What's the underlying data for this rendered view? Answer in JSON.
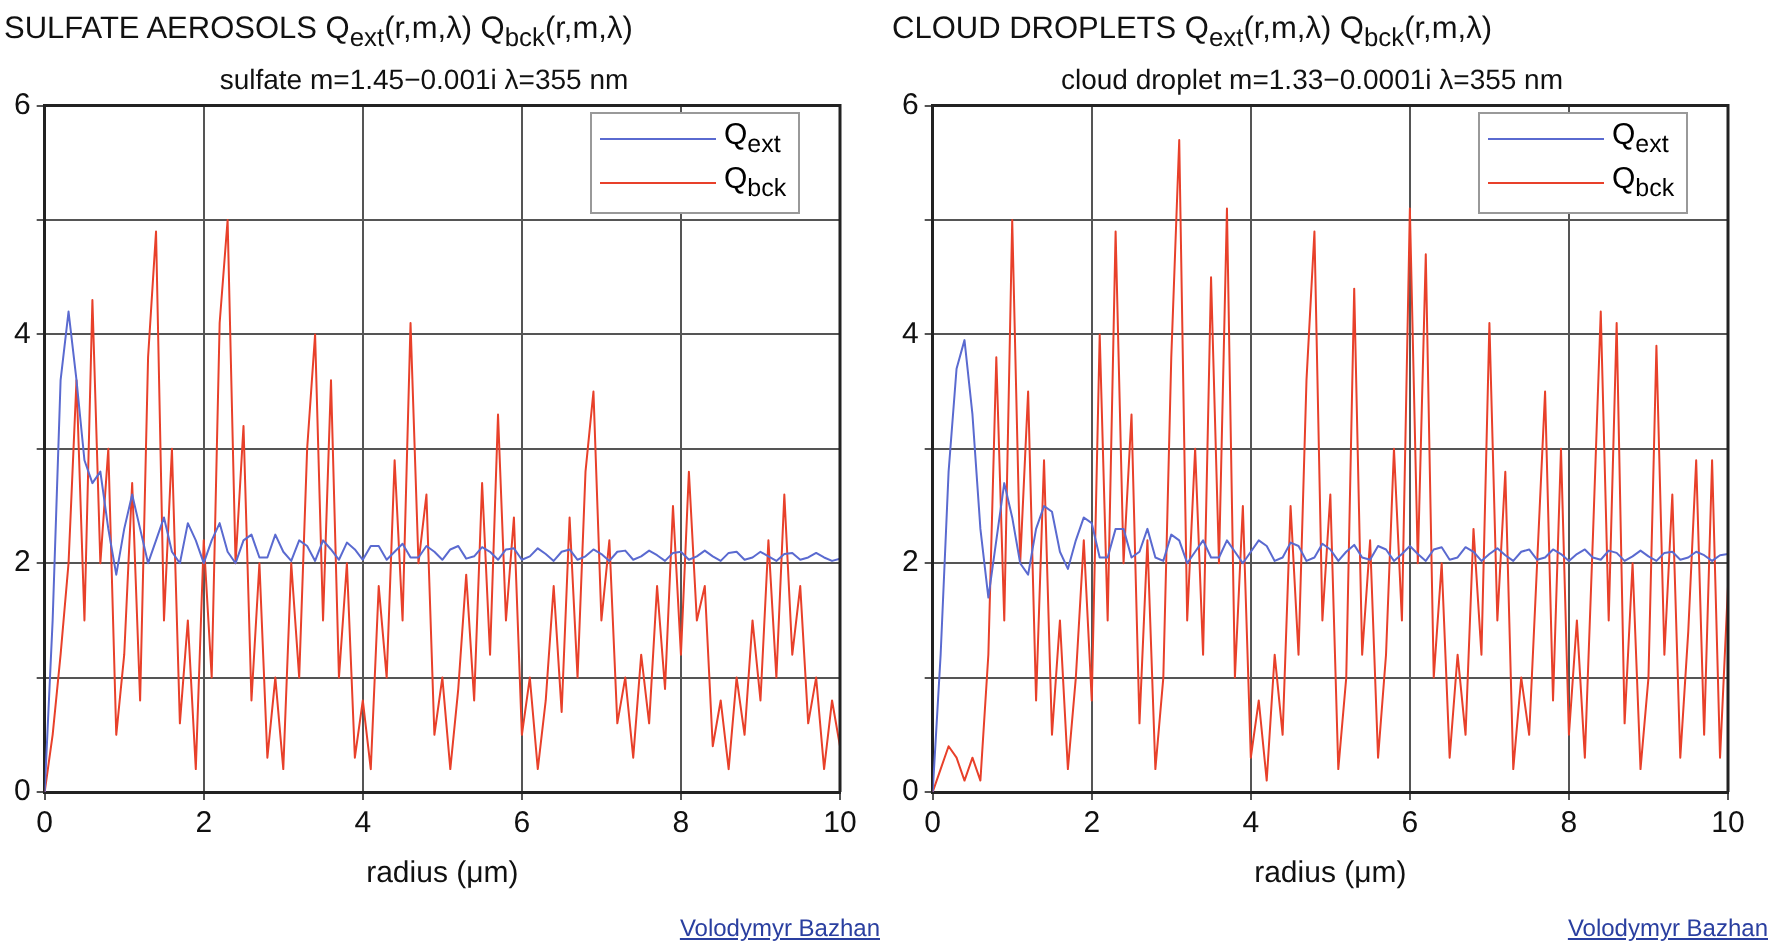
{
  "chart_data": [
    {
      "type": "line",
      "title": "SULFATE AEROSOLS Q$_{ext}$(r,m,λ) Q$_{bck}$(r,m,λ)",
      "subtitle": "sulfate m=1.45−0.001i λ=355 nm",
      "xlabel": "radius (μm)",
      "annotations": [
        "Volodymyr Bazhan"
      ],
      "x": [
        0,
        0.1,
        0.2,
        0.3,
        0.4,
        0.5,
        0.6,
        0.7,
        0.8,
        0.9,
        1,
        1.1,
        1.2,
        1.3,
        1.4,
        1.5,
        1.6,
        1.7,
        1.8,
        1.9,
        2,
        2.1,
        2.2,
        2.3,
        2.4,
        2.5,
        2.6,
        2.7,
        2.8,
        2.9,
        3,
        3.1,
        3.2,
        3.3,
        3.4,
        3.5,
        3.6,
        3.7,
        3.8,
        3.9,
        4,
        4.1,
        4.2,
        4.3,
        4.4,
        4.5,
        4.6,
        4.7,
        4.8,
        4.9,
        5,
        5.1,
        5.2,
        5.3,
        5.4,
        5.5,
        5.6,
        5.7,
        5.8,
        5.9,
        6,
        6.1,
        6.2,
        6.3,
        6.4,
        6.5,
        6.6,
        6.7,
        6.8,
        6.9,
        7,
        7.1,
        7.2,
        7.3,
        7.4,
        7.5,
        7.6,
        7.7,
        7.8,
        7.9,
        8,
        8.1,
        8.2,
        8.3,
        8.4,
        8.5,
        8.6,
        8.7,
        8.8,
        8.9,
        9,
        9.1,
        9.2,
        9.3,
        9.4,
        9.5,
        9.6,
        9.7,
        9.8,
        9.9,
        10
      ],
      "series": [
        {
          "name": "Q$_{ext}$",
          "color": "#5a6ad0",
          "values": [
            0,
            1.5,
            3.6,
            4.2,
            3.6,
            2.9,
            2.7,
            2.8,
            2.3,
            1.9,
            2.3,
            2.6,
            2.3,
            2,
            2.2,
            2.4,
            2.1,
            2,
            2.35,
            2.2,
            2,
            2.2,
            2.35,
            2.1,
            2,
            2.2,
            2.25,
            2.05,
            2.05,
            2.25,
            2.1,
            2.02,
            2.2,
            2.15,
            2.02,
            2.2,
            2.12,
            2.03,
            2.18,
            2.12,
            2.03,
            2.15,
            2.15,
            2.03,
            2.1,
            2.17,
            2.05,
            2.05,
            2.15,
            2.1,
            2.03,
            2.12,
            2.15,
            2.04,
            2.06,
            2.14,
            2.1,
            2.03,
            2.12,
            2.13,
            2.03,
            2.06,
            2.13,
            2.08,
            2.02,
            2.1,
            2.12,
            2.03,
            2.06,
            2.12,
            2.08,
            2.02,
            2.1,
            2.11,
            2.03,
            2.06,
            2.11,
            2.07,
            2.02,
            2.09,
            2.1,
            2.03,
            2.06,
            2.11,
            2.06,
            2.02,
            2.09,
            2.1,
            2.03,
            2.05,
            2.1,
            2.06,
            2.02,
            2.08,
            2.09,
            2.03,
            2.05,
            2.09,
            2.05,
            2.02,
            2.04
          ]
        },
        {
          "name": "Q$_{bck}$",
          "color": "#e8402a",
          "values": [
            0,
            0.5,
            1.2,
            2,
            3.6,
            1.5,
            4.3,
            2,
            3,
            0.5,
            1.2,
            2.7,
            0.8,
            3.8,
            4.9,
            1.5,
            3,
            0.6,
            1.5,
            0.2,
            2.2,
            1,
            4.1,
            5,
            2,
            3.2,
            0.8,
            2,
            0.3,
            1,
            0.2,
            2,
            1,
            3,
            4,
            1.5,
            3.6,
            1,
            2,
            0.3,
            0.8,
            0.2,
            1.8,
            1,
            2.9,
            1.5,
            4.1,
            2,
            2.6,
            0.5,
            1,
            0.2,
            0.9,
            1.9,
            0.8,
            2.7,
            1.2,
            3.3,
            1.5,
            2.4,
            0.5,
            1,
            0.2,
            0.8,
            1.8,
            0.7,
            2.4,
            1,
            2.8,
            3.5,
            1.5,
            2.2,
            0.6,
            1,
            0.3,
            1.2,
            0.6,
            1.8,
            0.9,
            2.5,
            1.2,
            2.8,
            1.5,
            1.8,
            0.4,
            0.8,
            0.2,
            1,
            0.5,
            1.5,
            0.8,
            2.2,
            1,
            2.6,
            1.2,
            1.8,
            0.6,
            1,
            0.2,
            0.8,
            0.4
          ]
        }
      ],
      "xlim": [
        0,
        10
      ],
      "xticks": [
        0,
        2,
        4,
        6,
        8,
        10
      ],
      "ylim": [
        0,
        6
      ],
      "yticks": [
        0,
        {
          "value": 1,
          "label": null
        },
        2,
        {
          "value": 3,
          "label": null
        },
        4,
        {
          "value": 5,
          "label": null
        },
        6
      ],
      "grid": true,
      "legend": "top right"
    },
    {
      "type": "line",
      "title": "CLOUD DROPLETS Q$_{ext}$(r,m,λ) Q$_{bck}$(r,m,λ)",
      "subtitle": "cloud droplet m=1.33−0.0001i λ=355 nm",
      "xlabel": "radius (μm)",
      "annotations": [
        "Volodymyr Bazhan"
      ],
      "x": [
        0,
        0.1,
        0.2,
        0.3,
        0.4,
        0.5,
        0.6,
        0.7,
        0.8,
        0.9,
        1,
        1.1,
        1.2,
        1.3,
        1.4,
        1.5,
        1.6,
        1.7,
        1.8,
        1.9,
        2,
        2.1,
        2.2,
        2.3,
        2.4,
        2.5,
        2.6,
        2.7,
        2.8,
        2.9,
        3,
        3.1,
        3.2,
        3.3,
        3.4,
        3.5,
        3.6,
        3.7,
        3.8,
        3.9,
        4,
        4.1,
        4.2,
        4.3,
        4.4,
        4.5,
        4.6,
        4.7,
        4.8,
        4.9,
        5,
        5.1,
        5.2,
        5.3,
        5.4,
        5.5,
        5.6,
        5.7,
        5.8,
        5.9,
        6,
        6.1,
        6.2,
        6.3,
        6.4,
        6.5,
        6.6,
        6.7,
        6.8,
        6.9,
        7,
        7.1,
        7.2,
        7.3,
        7.4,
        7.5,
        7.6,
        7.7,
        7.8,
        7.9,
        8,
        8.1,
        8.2,
        8.3,
        8.4,
        8.5,
        8.6,
        8.7,
        8.8,
        8.9,
        9,
        9.1,
        9.2,
        9.3,
        9.4,
        9.5,
        9.6,
        9.7,
        9.8,
        9.9,
        10
      ],
      "series": [
        {
          "name": "Q$_{ext}$",
          "color": "#5a6ad0",
          "values": [
            0,
            1.2,
            2.8,
            3.7,
            3.95,
            3.3,
            2.3,
            1.7,
            2.2,
            2.7,
            2.4,
            2,
            1.9,
            2.3,
            2.5,
            2.45,
            2.1,
            1.95,
            2.2,
            2.4,
            2.35,
            2.05,
            2.05,
            2.3,
            2.3,
            2.05,
            2.1,
            2.3,
            2.05,
            2.02,
            2.25,
            2.2,
            2,
            2.1,
            2.2,
            2.05,
            2.05,
            2.2,
            2.1,
            2,
            2.1,
            2.2,
            2.15,
            2.02,
            2.05,
            2.18,
            2.15,
            2.02,
            2.05,
            2.17,
            2.12,
            2.02,
            2.1,
            2.16,
            2.05,
            2.03,
            2.15,
            2.12,
            2.02,
            2.08,
            2.15,
            2.08,
            2.02,
            2.12,
            2.14,
            2.03,
            2.05,
            2.14,
            2.1,
            2.02,
            2.08,
            2.13,
            2.07,
            2.02,
            2.1,
            2.12,
            2.03,
            2.05,
            2.12,
            2.08,
            2.02,
            2.08,
            2.12,
            2.05,
            2.03,
            2.11,
            2.09,
            2.02,
            2.06,
            2.11,
            2.06,
            2.02,
            2.09,
            2.1,
            2.03,
            2.05,
            2.1,
            2.07,
            2.02,
            2.07,
            2.08
          ]
        },
        {
          "name": "Q$_{bck}$",
          "color": "#e8402a",
          "values": [
            0,
            0.2,
            0.4,
            0.3,
            0.1,
            0.3,
            0.1,
            1.2,
            3.8,
            1.5,
            5,
            2,
            3.5,
            0.8,
            2.9,
            0.5,
            1.5,
            0.2,
            1,
            2.2,
            0.8,
            4,
            1.5,
            4.9,
            2,
            3.3,
            0.6,
            2.2,
            0.2,
            1,
            3.8,
            5.7,
            1.5,
            3,
            1.2,
            4.5,
            2,
            5.1,
            1,
            2.5,
            0.3,
            0.8,
            0.1,
            1.2,
            0.5,
            2.5,
            1.2,
            3.6,
            4.9,
            1.5,
            2.6,
            0.2,
            1,
            4.4,
            1.2,
            2.2,
            0.3,
            1.2,
            3,
            1.5,
            5.1,
            2,
            4.7,
            1,
            2,
            0.3,
            1.2,
            0.5,
            2.3,
            1.2,
            4.1,
            1.5,
            2.8,
            0.2,
            1,
            0.5,
            2,
            3.5,
            0.8,
            3,
            0.5,
            1.5,
            0.3,
            2.2,
            4.2,
            1.5,
            4.1,
            0.6,
            2,
            0.2,
            1,
            3.9,
            1.2,
            2.6,
            0.3,
            1.4,
            2.9,
            0.5,
            2.9,
            0.3,
            1.8
          ]
        }
      ],
      "xlim": [
        0,
        10
      ],
      "xticks": [
        0,
        2,
        4,
        6,
        8,
        10
      ],
      "ylim": [
        0,
        6
      ],
      "yticks": [
        0,
        {
          "value": 1,
          "label": null
        },
        2,
        {
          "value": 3,
          "label": null
        },
        4,
        {
          "value": 5,
          "label": null
        },
        6
      ],
      "grid": true,
      "legend": "top right"
    }
  ]
}
